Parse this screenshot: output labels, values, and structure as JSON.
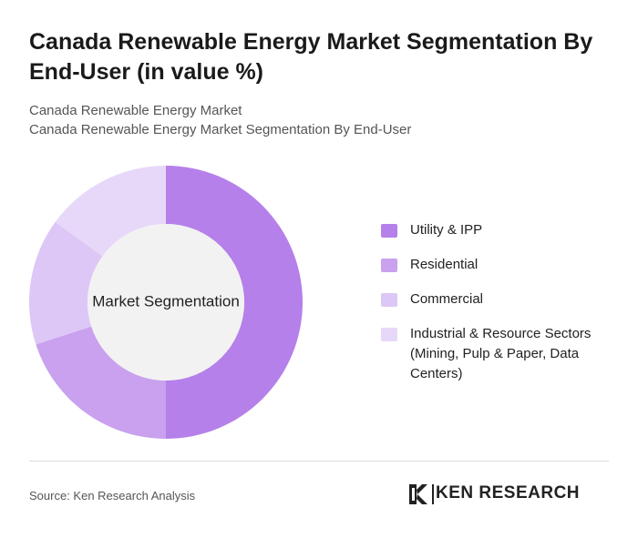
{
  "chart_data": {
    "type": "pie",
    "title": "Canada Renewable Energy Market Segmentation By End-User (in value %)",
    "subtitle": [
      "Canada Renewable Energy Market",
      "Canada Renewable Energy Market Segmentation By End-User"
    ],
    "center_label": "Market Segmentation",
    "categories": [
      "Utility & IPP",
      "Residential",
      "Commercial",
      "Industrial & Resource Sectors (Mining, Pulp & Paper, Data Centers)"
    ],
    "values": [
      50,
      20,
      15,
      15
    ],
    "colors": [
      "#b580ea",
      "#c9a1ef",
      "#dcc7f6",
      "#e7d8f9"
    ],
    "source": "Source: Ken Research Analysis",
    "brand": "KEN RESEARCH"
  }
}
